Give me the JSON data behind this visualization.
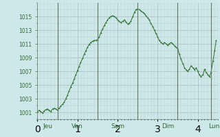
{
  "background_color": "#cce8e8",
  "plot_bg_color": "#cce8e8",
  "line_color": "#2d6e2d",
  "marker_color": "#2d6e2d",
  "grid_major_color": "#aabbbb",
  "grid_minor_color": "#bbcccc",
  "tick_label_color": "#336633",
  "ylim": [
    1000.0,
    1017.0
  ],
  "yticks": [
    1001,
    1003,
    1005,
    1007,
    1009,
    1011,
    1013,
    1015
  ],
  "day_labels": [
    "Jeu",
    "Ven",
    "Sam",
    "Dim",
    "Lun"
  ],
  "vline_x": [
    0.5,
    1.5,
    2.5,
    3.5,
    4.33
  ],
  "vline_color": "#667766",
  "xlim": [
    0.0,
    4.5
  ],
  "x_values": [
    0.0,
    0.04,
    0.08,
    0.13,
    0.17,
    0.21,
    0.25,
    0.29,
    0.33,
    0.38,
    0.42,
    0.46,
    0.5,
    0.54,
    0.58,
    0.63,
    0.67,
    0.71,
    0.75,
    0.79,
    0.83,
    0.88,
    0.92,
    0.96,
    1.0,
    1.04,
    1.08,
    1.13,
    1.17,
    1.21,
    1.25,
    1.29,
    1.33,
    1.38,
    1.42,
    1.46,
    1.5,
    1.54,
    1.58,
    1.63,
    1.67,
    1.71,
    1.75,
    1.79,
    1.83,
    1.88,
    1.92,
    1.96,
    2.0,
    2.04,
    2.08,
    2.13,
    2.17,
    2.21,
    2.25,
    2.29,
    2.33,
    2.38,
    2.42,
    2.46,
    2.5,
    2.54,
    2.58,
    2.63,
    2.67,
    2.71,
    2.75,
    2.79,
    2.83,
    2.88,
    2.92,
    2.96,
    3.0,
    3.04,
    3.08,
    3.13,
    3.17,
    3.21,
    3.25,
    3.29,
    3.33,
    3.38,
    3.42,
    3.46,
    3.5,
    3.54,
    3.58,
    3.63,
    3.67,
    3.71,
    3.75,
    3.79,
    3.83,
    3.88,
    3.92,
    3.96,
    4.0,
    4.04,
    4.08,
    4.13,
    4.17,
    4.21,
    4.25,
    4.29,
    4.33,
    4.38,
    4.42,
    4.46
  ],
  "y_values": [
    1001.0,
    1001.3,
    1001.1,
    1000.9,
    1001.2,
    1001.4,
    1001.5,
    1001.3,
    1001.1,
    1001.5,
    1001.6,
    1001.5,
    1001.3,
    1001.6,
    1001.9,
    1002.2,
    1002.5,
    1003.0,
    1003.5,
    1004.1,
    1004.7,
    1005.3,
    1005.9,
    1006.5,
    1007.1,
    1007.7,
    1008.3,
    1008.9,
    1009.5,
    1010.0,
    1010.5,
    1010.9,
    1011.2,
    1011.4,
    1011.5,
    1011.5,
    1011.6,
    1012.0,
    1012.6,
    1013.2,
    1013.7,
    1014.1,
    1014.5,
    1014.8,
    1015.0,
    1015.1,
    1015.0,
    1014.8,
    1014.5,
    1014.3,
    1014.1,
    1014.3,
    1014.5,
    1014.2,
    1013.9,
    1014.0,
    1014.3,
    1015.0,
    1015.6,
    1016.0,
    1016.1,
    1016.0,
    1015.8,
    1015.6,
    1015.4,
    1015.1,
    1014.8,
    1014.5,
    1014.0,
    1013.5,
    1013.0,
    1012.5,
    1012.0,
    1011.5,
    1011.2,
    1011.0,
    1011.2,
    1011.0,
    1010.8,
    1011.0,
    1011.2,
    1011.0,
    1010.7,
    1010.5,
    1010.3,
    1009.5,
    1008.8,
    1008.1,
    1007.5,
    1007.2,
    1007.0,
    1007.3,
    1007.8,
    1007.5,
    1007.2,
    1007.5,
    1007.0,
    1006.5,
    1006.2,
    1006.5,
    1007.3,
    1006.8,
    1006.5,
    1006.2,
    1006.8,
    1008.5,
    1010.0,
    1011.5
  ]
}
